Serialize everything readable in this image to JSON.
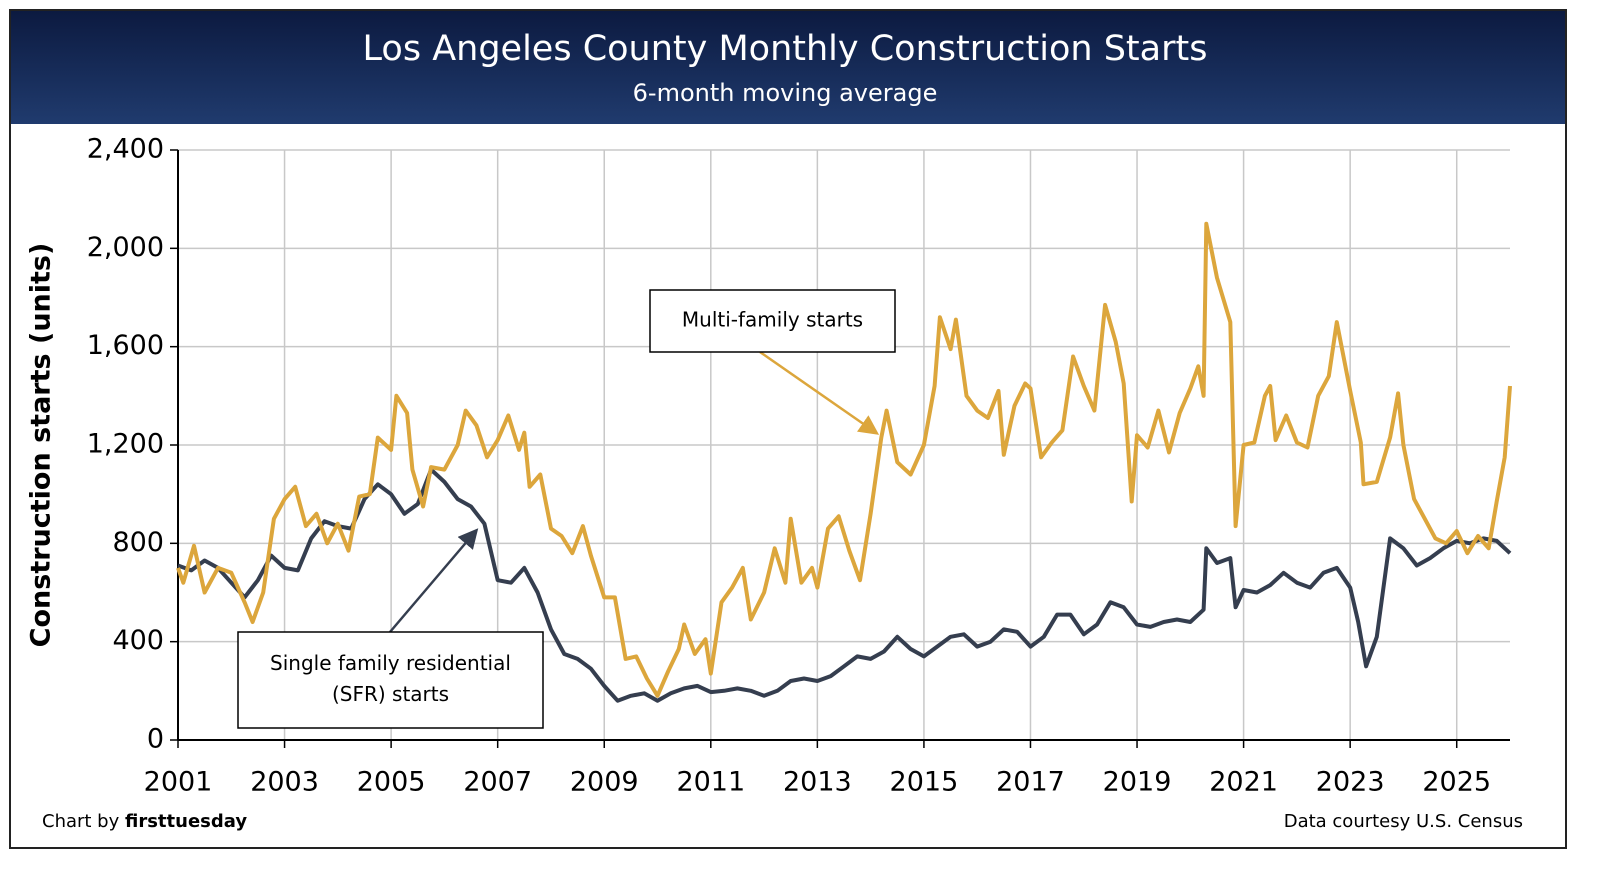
{
  "chart_data": {
    "type": "line",
    "title": "Los Angeles County Monthly Construction Starts",
    "subtitle": "6-month moving average",
    "y_label": "Construction starts (units)",
    "credit": "Chart by",
    "credit_name": "firsttuesday",
    "source": "Data courtesy U.S. Census",
    "xlim": [
      2001,
      2026
    ],
    "xticks": [
      2001,
      2003,
      2005,
      2007,
      2009,
      2011,
      2013,
      2015,
      2017,
      2019,
      2021,
      2023,
      2025
    ],
    "ylim": [
      0,
      2400
    ],
    "yticks": [
      0,
      {
        "value": 400,
        "label": "400"
      },
      {
        "value": 800,
        "label": "800"
      },
      {
        "value": 1200,
        "label": "1,200"
      },
      {
        "value": 1600,
        "label": "1,600"
      },
      {
        "value": 2000,
        "label": "2,000"
      },
      {
        "value": 2400,
        "label": "2,400"
      }
    ],
    "grid": true,
    "annotations": [
      {
        "text": [
          "Multi-family starts"
        ],
        "series": 1
      },
      {
        "text": [
          "Single family residential",
          "(SFR) starts"
        ],
        "series": 0
      }
    ],
    "series": [
      {
        "name": "Single family residential (SFR) starts",
        "color": "#353e4f",
        "x": [
          2001.0,
          2001.25,
          2001.5,
          2001.75,
          2002.0,
          2002.25,
          2002.5,
          2002.75,
          2003.0,
          2003.25,
          2003.5,
          2003.75,
          2004.0,
          2004.25,
          2004.5,
          2004.75,
          2005.0,
          2005.25,
          2005.5,
          2005.75,
          2006.0,
          2006.25,
          2006.5,
          2006.75,
          2007.0,
          2007.25,
          2007.5,
          2007.75,
          2008.0,
          2008.25,
          2008.5,
          2008.75,
          2009.0,
          2009.25,
          2009.5,
          2009.75,
          2010.0,
          2010.25,
          2010.5,
          2010.75,
          2011.0,
          2011.25,
          2011.5,
          2011.75,
          2012.0,
          2012.25,
          2012.5,
          2012.75,
          2013.0,
          2013.25,
          2013.5,
          2013.75,
          2014.0,
          2014.25,
          2014.5,
          2014.75,
          2015.0,
          2015.25,
          2015.5,
          2015.75,
          2016.0,
          2016.25,
          2016.5,
          2016.75,
          2017.0,
          2017.25,
          2017.5,
          2017.75,
          2018.0,
          2018.25,
          2018.5,
          2018.75,
          2019.0,
          2019.25,
          2019.5,
          2019.75,
          2020.0,
          2020.25,
          2020.3,
          2020.5,
          2020.75,
          2020.85,
          2021.0,
          2021.25,
          2021.5,
          2021.75,
          2022.0,
          2022.25,
          2022.5,
          2022.75,
          2023.0,
          2023.15,
          2023.3,
          2023.5,
          2023.75,
          2024.0,
          2024.25,
          2024.5,
          2024.75,
          2025.0,
          2025.25,
          2025.5,
          2025.75,
          2026.0
        ],
        "values": [
          710,
          690,
          730,
          700,
          640,
          580,
          650,
          750,
          700,
          690,
          820,
          890,
          870,
          860,
          980,
          1040,
          1000,
          920,
          960,
          1100,
          1050,
          980,
          950,
          880,
          650,
          640,
          700,
          600,
          450,
          350,
          330,
          290,
          220,
          160,
          180,
          190,
          160,
          190,
          210,
          220,
          195,
          200,
          210,
          200,
          180,
          200,
          240,
          250,
          240,
          260,
          300,
          340,
          330,
          360,
          420,
          370,
          340,
          380,
          420,
          430,
          380,
          400,
          450,
          440,
          380,
          420,
          510,
          510,
          430,
          470,
          560,
          540,
          470,
          460,
          480,
          490,
          480,
          530,
          780,
          720,
          740,
          540,
          610,
          600,
          630,
          680,
          640,
          620,
          680,
          700,
          620,
          480,
          300,
          420,
          820,
          780,
          710,
          740,
          780,
          810,
          800,
          820,
          810,
          760
        ]
      },
      {
        "name": "Multi-family starts",
        "color": "#dca63c",
        "x": [
          2001.0,
          2001.1,
          2001.3,
          2001.5,
          2001.75,
          2002.0,
          2002.25,
          2002.4,
          2002.6,
          2002.8,
          2003.0,
          2003.2,
          2003.4,
          2003.6,
          2003.8,
          2004.0,
          2004.2,
          2004.4,
          2004.6,
          2004.75,
          2005.0,
          2005.1,
          2005.3,
          2005.4,
          2005.6,
          2005.75,
          2006.0,
          2006.25,
          2006.4,
          2006.6,
          2006.8,
          2007.0,
          2007.2,
          2007.4,
          2007.5,
          2007.6,
          2007.8,
          2008.0,
          2008.2,
          2008.4,
          2008.6,
          2008.75,
          2009.0,
          2009.2,
          2009.4,
          2009.6,
          2009.8,
          2010.0,
          2010.2,
          2010.4,
          2010.5,
          2010.7,
          2010.9,
          2011.0,
          2011.2,
          2011.4,
          2011.6,
          2011.75,
          2012.0,
          2012.2,
          2012.4,
          2012.5,
          2012.7,
          2012.9,
          2013.0,
          2013.2,
          2013.4,
          2013.6,
          2013.8,
          2014.0,
          2014.2,
          2014.3,
          2014.5,
          2014.75,
          2015.0,
          2015.2,
          2015.3,
          2015.5,
          2015.6,
          2015.8,
          2016.0,
          2016.2,
          2016.4,
          2016.5,
          2016.7,
          2016.9,
          2017.0,
          2017.2,
          2017.4,
          2017.6,
          2017.8,
          2018.0,
          2018.2,
          2018.4,
          2018.6,
          2018.75,
          2018.9,
          2019.0,
          2019.2,
          2019.4,
          2019.6,
          2019.8,
          2020.0,
          2020.15,
          2020.25,
          2020.3,
          2020.5,
          2020.75,
          2020.85,
          2021.0,
          2021.2,
          2021.4,
          2021.5,
          2021.6,
          2021.8,
          2022.0,
          2022.2,
          2022.4,
          2022.6,
          2022.75,
          2023.0,
          2023.2,
          2023.25,
          2023.5,
          2023.75,
          2023.9,
          2024.0,
          2024.2,
          2024.4,
          2024.6,
          2024.8,
          2025.0,
          2025.2,
          2025.4,
          2025.6,
          2025.75,
          2025.9,
          2026.0
        ],
        "values": [
          700,
          640,
          790,
          600,
          700,
          680,
          560,
          480,
          600,
          900,
          980,
          1030,
          870,
          920,
          800,
          880,
          770,
          990,
          1000,
          1230,
          1180,
          1400,
          1330,
          1100,
          950,
          1110,
          1100,
          1200,
          1340,
          1280,
          1150,
          1220,
          1320,
          1180,
          1250,
          1030,
          1080,
          860,
          830,
          760,
          870,
          750,
          580,
          580,
          330,
          340,
          250,
          180,
          280,
          370,
          470,
          350,
          410,
          270,
          560,
          620,
          700,
          490,
          600,
          780,
          640,
          900,
          640,
          700,
          620,
          860,
          910,
          770,
          650,
          920,
          1230,
          1340,
          1130,
          1080,
          1200,
          1440,
          1720,
          1590,
          1710,
          1400,
          1340,
          1310,
          1420,
          1160,
          1360,
          1450,
          1430,
          1150,
          1210,
          1260,
          1560,
          1440,
          1340,
          1770,
          1620,
          1450,
          970,
          1240,
          1190,
          1340,
          1170,
          1330,
          1430,
          1520,
          1400,
          2100,
          1880,
          1700,
          870,
          1200,
          1210,
          1400,
          1440,
          1220,
          1320,
          1210,
          1190,
          1400,
          1480,
          1700,
          1420,
          1210,
          1040,
          1050,
          1230,
          1410,
          1200,
          980,
          900,
          820,
          800,
          850,
          760,
          830,
          780,
          970,
          1150,
          1440
        ]
      }
    ]
  }
}
